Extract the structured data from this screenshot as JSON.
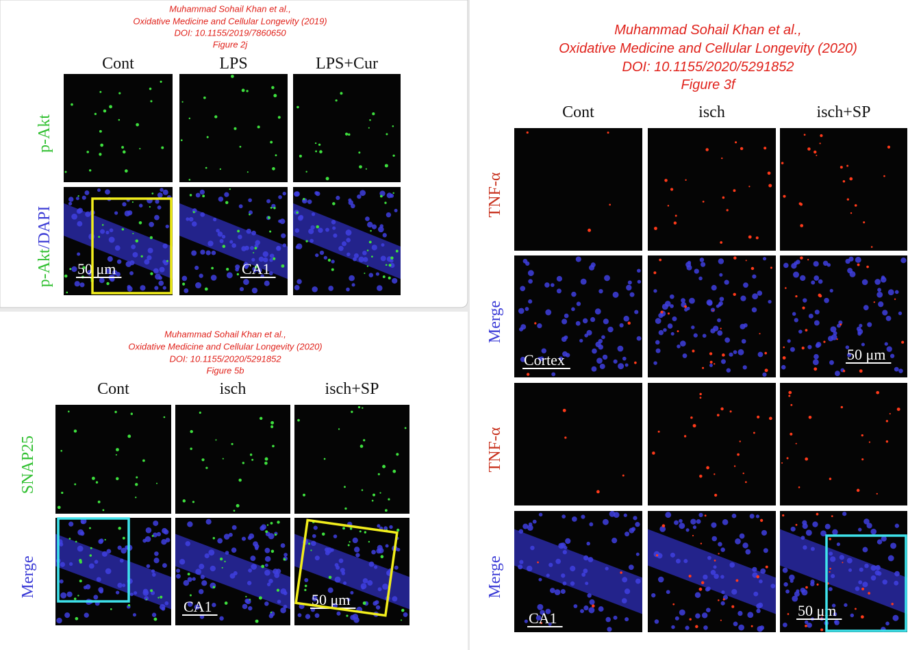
{
  "figures": [
    {
      "citation": [
        "Muhammad Sohail Khan et al.,",
        "Oxidative Medicine and Cellular Longevity (2019)",
        "DOI: 10.1155/2019/7860650",
        "Figure 2j"
      ],
      "columns": [
        "Cont",
        "LPS",
        "LPS+Cur"
      ],
      "rows": [
        [
          "p-Akt"
        ],
        [
          "p-Akt",
          "/DAPI"
        ]
      ],
      "annotations": [
        "50 μm",
        "CA1"
      ]
    },
    {
      "citation": [
        "Muhammad Sohail Khan et al.,",
        "Oxidative Medicine and Cellular Longevity (2020)",
        "DOI: 10.1155/2020/5291852",
        "Figure 5b"
      ],
      "columns": [
        "Cont",
        "isch",
        "isch+SP"
      ],
      "rows": [
        [
          "SNAP25"
        ],
        [
          "Merge"
        ]
      ],
      "annotations": [
        "CA1",
        "50 μm"
      ]
    },
    {
      "citation": [
        "Muhammad Sohail Khan et al.,",
        "Oxidative Medicine and Cellular Longevity (2020)",
        "DOI: 10.1155/2020/5291852",
        "Figure 3f"
      ],
      "columns": [
        "Cont",
        "isch",
        "isch+SP"
      ],
      "rows": [
        [
          "TNF-α"
        ],
        [
          "Merge"
        ],
        [
          "TNF-α"
        ],
        [
          "Merge"
        ]
      ],
      "annotations": [
        "Cortex",
        "50 μm",
        "CA1",
        "50 μm"
      ]
    }
  ]
}
